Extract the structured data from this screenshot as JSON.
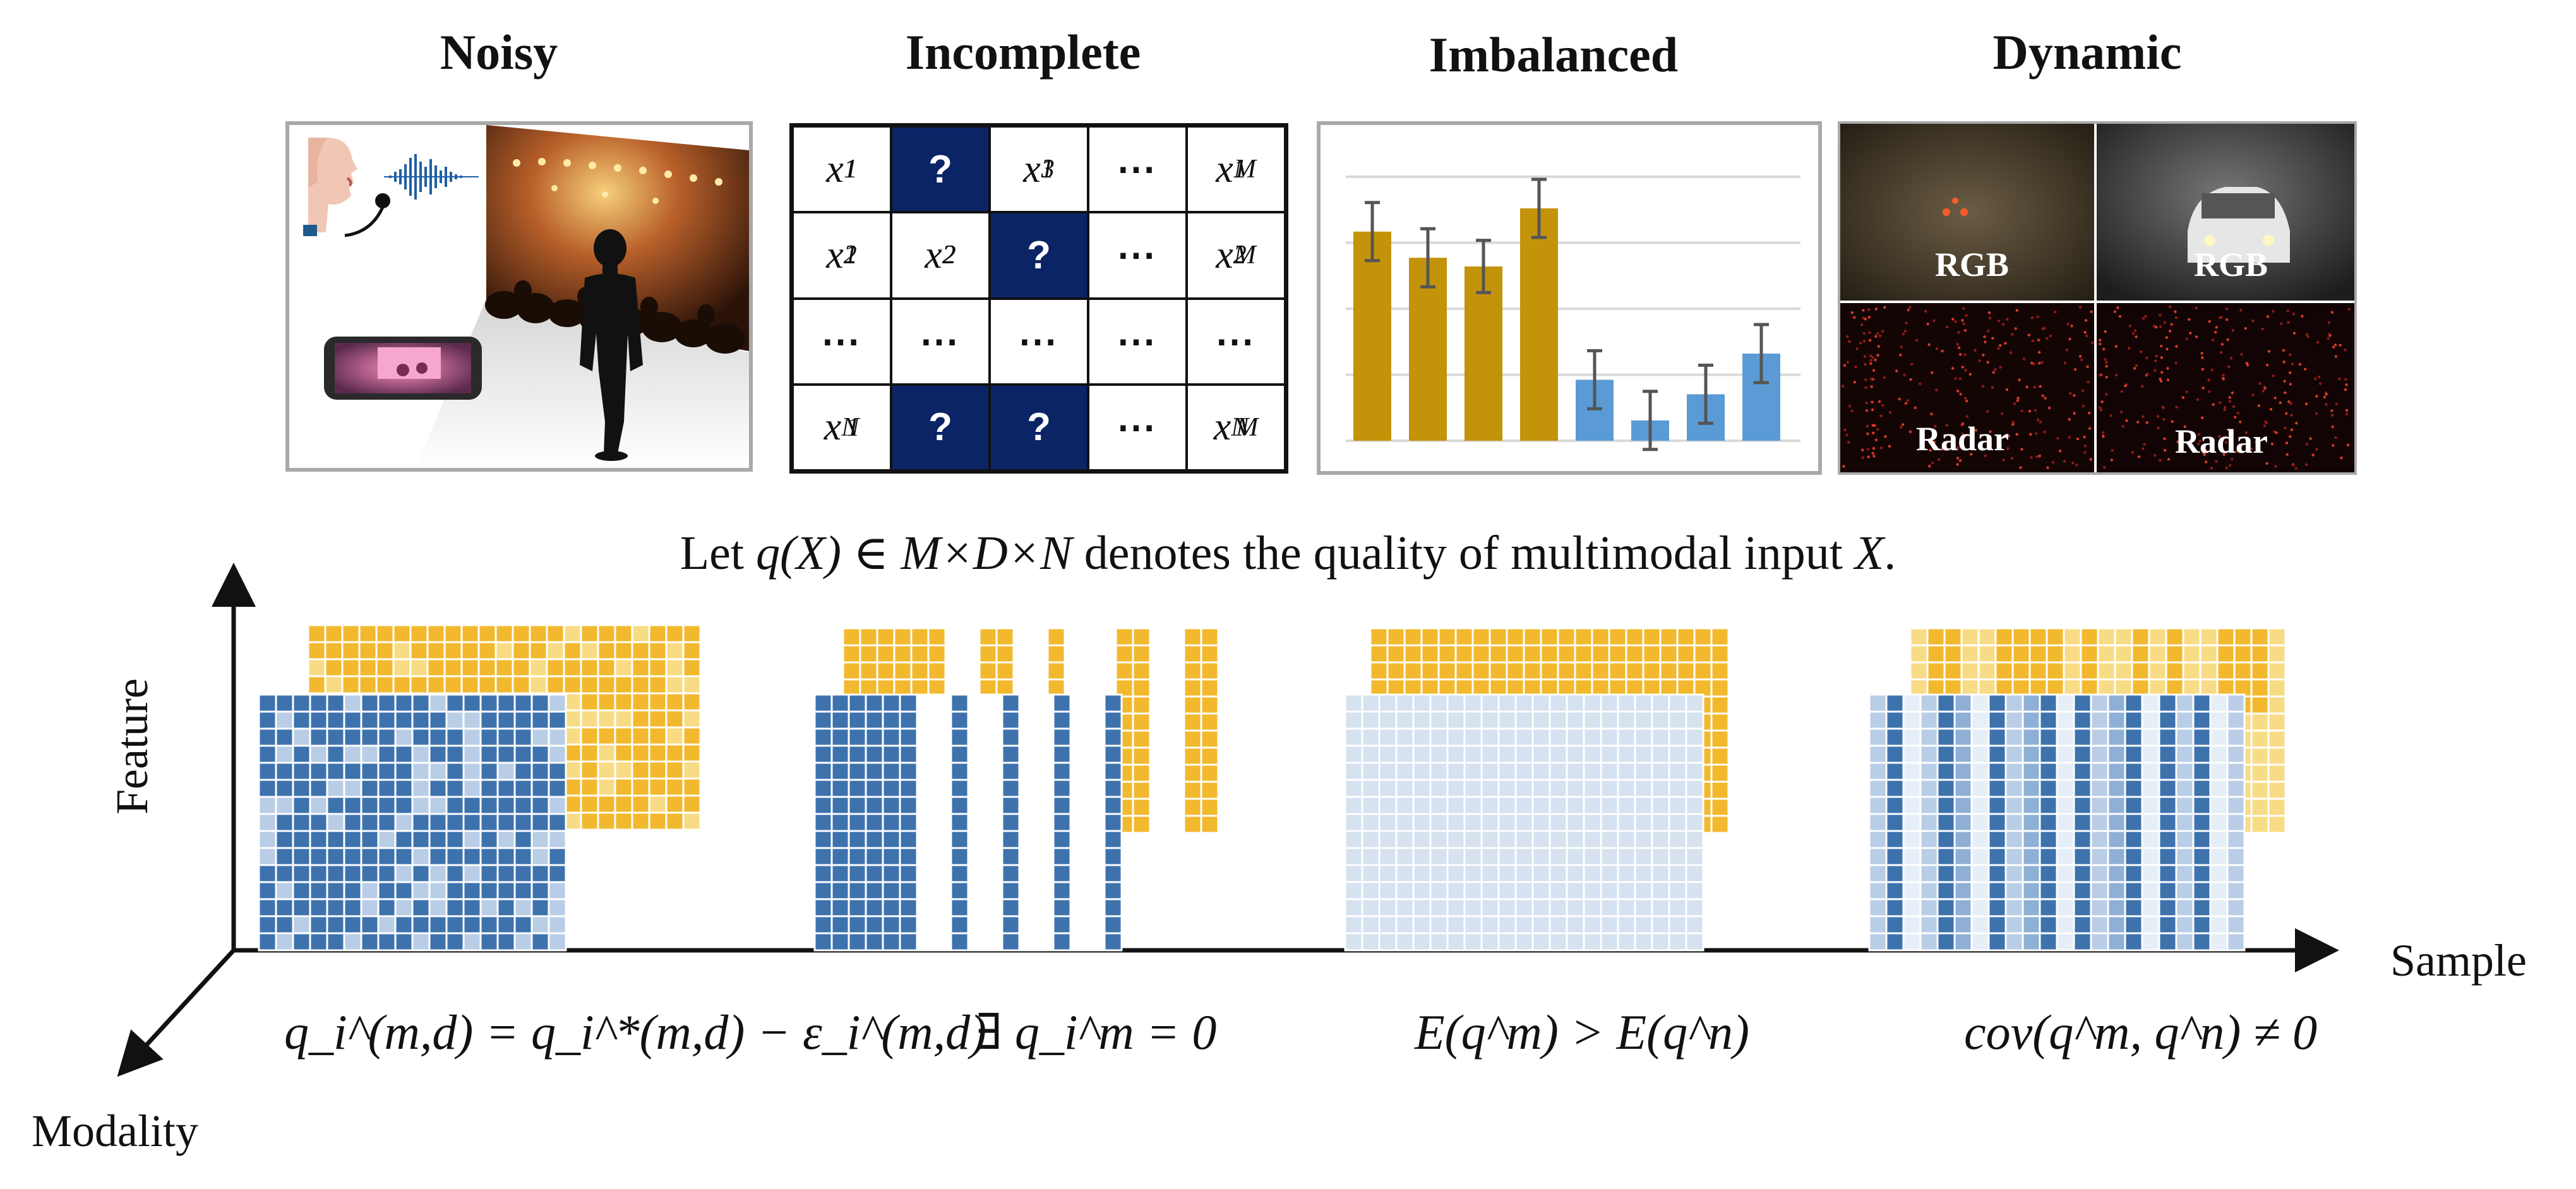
{
  "titles": {
    "noisy": "Noisy",
    "incomplete": "Incomplete",
    "imbalanced": "Imbalanced",
    "dynamic": "Dynamic"
  },
  "incomplete_grid": {
    "rows": [
      [
        {
          "base": "x",
          "sub": "1",
          "sup": "1"
        },
        {
          "missing": "?"
        },
        {
          "base": "x",
          "sub": "1",
          "sup": "3"
        },
        {
          "dots": "⋯"
        },
        {
          "base": "x",
          "sub": "1",
          "sup": "M"
        }
      ],
      [
        {
          "base": "x",
          "sub": "2",
          "sup": "1"
        },
        {
          "base": "x",
          "sub": "2",
          "sup": "2"
        },
        {
          "missing": "?"
        },
        {
          "dots": "⋯"
        },
        {
          "base": "x",
          "sub": "2",
          "sup": "M"
        }
      ],
      [
        {
          "dots": "⋯"
        },
        {
          "dots": "⋯"
        },
        {
          "dots": "⋯"
        },
        {
          "dots": "⋯"
        },
        {
          "dots": "⋯"
        }
      ],
      [
        {
          "base": "x",
          "sub": "N",
          "sup": "1"
        },
        {
          "missing": "?"
        },
        {
          "missing": "?"
        },
        {
          "dots": "⋯"
        },
        {
          "base": "x",
          "sub": "N",
          "sup": "M"
        }
      ]
    ]
  },
  "imbalanced_bars": {
    "colors": {
      "gold": "#c39309",
      "blue": "#5b9bd5",
      "error": "#555555"
    },
    "values": [
      0.72,
      0.63,
      0.6,
      0.8,
      0.21,
      0.07,
      0.16,
      0.3
    ],
    "errors": [
      0.1,
      0.1,
      0.09,
      0.1,
      0.1,
      0.1,
      0.1,
      0.1
    ],
    "groups": [
      "gold",
      "gold",
      "gold",
      "gold",
      "blue",
      "blue",
      "blue",
      "blue"
    ]
  },
  "dynamic_labels": {
    "top_left": "RGB",
    "top_right": "RGB",
    "bottom_left": "Radar",
    "bottom_right": "Radar"
  },
  "statement": {
    "prefix": "Let ",
    "expr": "q(X) ∈ M×D×N",
    "middle": " denotes the quality of multimodal input ",
    "var": "X",
    "suffix": "."
  },
  "axes": {
    "feature": "Feature",
    "sample": "Sample",
    "modality": "Modality"
  },
  "formulas": {
    "noisy": "q_i^(m,d) = q_i^*(m,d) − ε_i^(m,d)",
    "incomplete": "∃ q_i^m = 0",
    "imbalanced": "E(q^m) > E(q^n)",
    "dynamic": "cov(q^m, q^n) ≠ 0"
  },
  "matrix_colors": {
    "yellow": "#f2b92f",
    "yellow_light": "#f8dc85",
    "blue": "#3d72ad",
    "blue_light": "#b9cde6",
    "blue_pale": "#d6e2ef",
    "grid_line": "#ffffff"
  }
}
